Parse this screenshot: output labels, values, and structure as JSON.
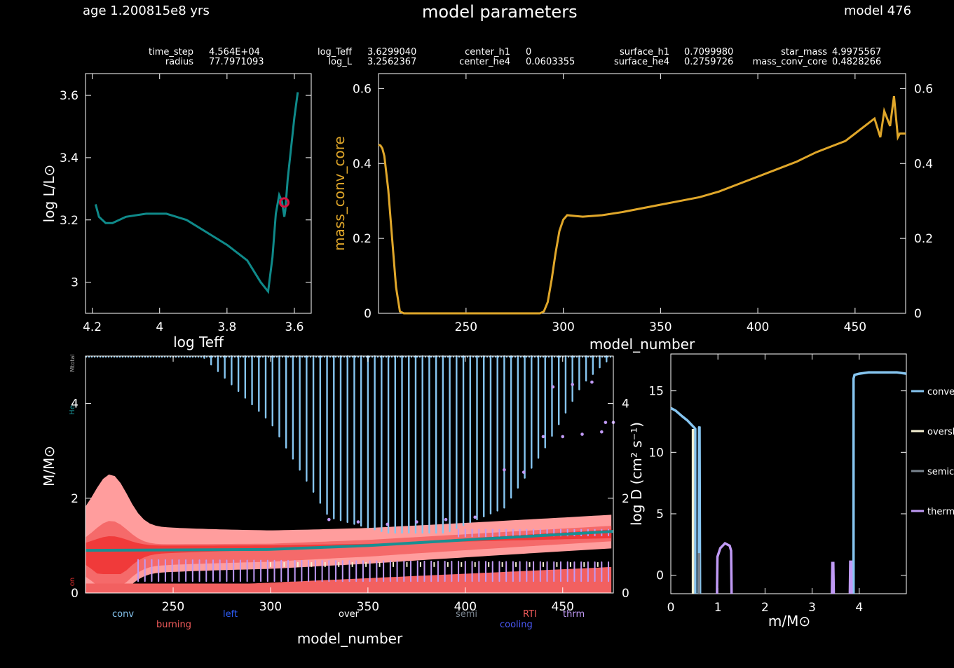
{
  "header": {
    "age_text": "age 1.200815e8 yrs",
    "title": "model parameters",
    "model_text": "model 476"
  },
  "stats": [
    {
      "label": "time_step",
      "value": "4.564E+04"
    },
    {
      "label": "radius",
      "value": "77.7971093"
    },
    {
      "label": "log_Teff",
      "value": "3.6299040"
    },
    {
      "label": "log_L",
      "value": "3.2562367"
    },
    {
      "label": "center_h1",
      "value": "0"
    },
    {
      "label": "center_he4",
      "value": "0.0603355"
    },
    {
      "label": "surface_h1",
      "value": "0.7099980"
    },
    {
      "label": "surface_he4",
      "value": "0.2759726"
    },
    {
      "label": "star_mass",
      "value": "4.9975567"
    },
    {
      "label": "mass_conv_core",
      "value": "0.4828266"
    }
  ],
  "colors": {
    "hr_track": "#0f8a8a",
    "hr_marker": "#d6123f",
    "mass_conv_core": "#e0a72a",
    "convective": "#86c5f0",
    "overshoot": "#f5f0d2",
    "semiconvective": "#7a8590",
    "thermohaline": "#c09af5",
    "burning_dark": "#f03a3a",
    "burning_light": "#ff9d9d",
    "he_core": "#1a8f92"
  },
  "chart_data": [
    {
      "type": "line",
      "name": "hr",
      "xlabel": "log Teff",
      "ylabel": "log L/L⊙",
      "xlim": [
        4.22,
        3.55
      ],
      "ylim": [
        2.9,
        3.67
      ],
      "xticks": [
        "4.2",
        "4",
        "3.8",
        "3.6"
      ],
      "yticks": [
        "3",
        "3.2",
        "3.4",
        "3.6"
      ],
      "x": [
        4.19,
        4.18,
        4.16,
        4.14,
        4.1,
        4.04,
        3.98,
        3.92,
        3.86,
        3.8,
        3.74,
        3.7,
        3.678,
        3.665,
        3.655,
        3.645,
        3.637,
        3.63,
        3.627,
        3.625,
        3.62,
        3.61,
        3.6,
        3.59
      ],
      "y": [
        3.25,
        3.21,
        3.19,
        3.19,
        3.21,
        3.22,
        3.22,
        3.2,
        3.16,
        3.12,
        3.07,
        3.0,
        2.97,
        3.08,
        3.22,
        3.28,
        3.26,
        3.21,
        3.23,
        3.26,
        3.33,
        3.43,
        3.53,
        3.61
      ],
      "current": {
        "x": 3.63,
        "y": 3.256
      }
    },
    {
      "type": "line",
      "name": "mass_conv_core_history",
      "xlabel": "model_number",
      "ylabel": "mass_conv_core",
      "xlim": [
        205,
        476
      ],
      "ylim": [
        0,
        0.64
      ],
      "xticks": [
        "250",
        "300",
        "350",
        "400",
        "450"
      ],
      "yticks": [
        "0",
        "0.2",
        "0.4",
        "0.6"
      ],
      "x": [
        205,
        206,
        207,
        208,
        210,
        212,
        214,
        216,
        218,
        288,
        290,
        292,
        294,
        296,
        298,
        300,
        302,
        306,
        310,
        320,
        330,
        340,
        350,
        360,
        370,
        380,
        390,
        400,
        410,
        420,
        430,
        435,
        440,
        445,
        450,
        455,
        460,
        463,
        465,
        468,
        470,
        472,
        473,
        476
      ],
      "y": [
        0.45,
        0.448,
        0.44,
        0.42,
        0.33,
        0.2,
        0.07,
        0.005,
        0,
        0,
        0.005,
        0.03,
        0.09,
        0.16,
        0.22,
        0.25,
        0.262,
        0.26,
        0.258,
        0.262,
        0.27,
        0.28,
        0.29,
        0.3,
        0.31,
        0.325,
        0.345,
        0.365,
        0.385,
        0.405,
        0.43,
        0.44,
        0.45,
        0.46,
        0.48,
        0.5,
        0.52,
        0.47,
        0.54,
        0.5,
        0.58,
        0.47,
        0.48,
        0.48
      ]
    },
    {
      "type": "area",
      "name": "kippenhahn",
      "xlabel": "model_number",
      "ylabel": "M/M⊙",
      "xlim": [
        205,
        476
      ],
      "ylim": [
        0,
        5
      ],
      "xticks": [
        "250",
        "300",
        "350",
        "400",
        "450"
      ],
      "yticks": [
        "0",
        "2",
        "4"
      ],
      "y2ticks": [
        "0",
        "2",
        "4"
      ],
      "total_mass": 4.9976,
      "right_edge_labels": [
        "Mtotal",
        "He",
        "on"
      ],
      "legend": [
        "conv",
        "burning",
        "left",
        "over",
        "semi",
        "RTI",
        "cooling",
        "thrm"
      ],
      "he_core_mass": {
        "x": [
          205,
          300,
          350,
          400,
          476
        ],
        "y": [
          0.9,
          0.92,
          1.0,
          1.12,
          1.3
        ]
      },
      "envelope_convection_bottom": {
        "x": [
          265,
          300,
          330,
          360,
          390,
          420,
          440,
          460,
          470,
          476
        ],
        "y": [
          5.0,
          3.6,
          1.6,
          1.27,
          1.27,
          1.8,
          3.0,
          4.4,
          4.8,
          5.0
        ]
      }
    },
    {
      "type": "line",
      "name": "mixing_profile",
      "xlabel": "m/M⊙",
      "ylabel": "log D (cm² s⁻¹)",
      "xlim": [
        0,
        5
      ],
      "ylim": [
        -1.5,
        18
      ],
      "xticks": [
        "0",
        "1",
        "2",
        "3",
        "4"
      ],
      "yticks": [
        "0",
        "5",
        "10",
        "15"
      ],
      "legend": [
        "convective",
        "overshoot",
        "semiconvective",
        "thermohaline"
      ],
      "series": [
        {
          "name": "convective",
          "segments": [
            {
              "x": [
                0.0,
                0.1,
                0.25,
                0.35,
                0.45,
                0.5,
                0.52,
                0.52
              ],
              "y": [
                13.6,
                13.4,
                12.9,
                12.6,
                12.2,
                12.0,
                11.9,
                -1.5
              ]
            },
            {
              "x": [
                0.59,
                0.6,
                0.61,
                0.62
              ],
              "y": [
                -1.5,
                12.0,
                12.1,
                -1.5
              ]
            },
            {
              "x": [
                3.88,
                3.88,
                3.9,
                4.0,
                4.2,
                4.5,
                4.8,
                5.0
              ],
              "y": [
                -1.5,
                16.0,
                16.3,
                16.4,
                16.5,
                16.5,
                16.5,
                16.4
              ]
            }
          ]
        },
        {
          "name": "overshoot",
          "segments": [
            {
              "x": [
                0.47,
                0.47
              ],
              "y": [
                -1.5,
                11.9
              ]
            }
          ]
        },
        {
          "name": "semiconvective",
          "segments": [
            {
              "x": [
                0.6,
                0.6
              ],
              "y": [
                -1.5,
                1.8
              ]
            }
          ]
        },
        {
          "name": "thermohaline",
          "segments": [
            {
              "x": [
                0.98,
                0.99,
                1.05,
                1.15,
                1.25,
                1.28,
                1.29
              ],
              "y": [
                -1.5,
                1.5,
                2.2,
                2.6,
                2.4,
                2.0,
                -1.5
              ]
            },
            {
              "x": [
                3.42,
                3.43,
                3.45,
                3.46
              ],
              "y": [
                -1.5,
                1.0,
                1.0,
                -1.5
              ]
            },
            {
              "x": [
                3.8,
                3.81,
                3.83,
                3.84
              ],
              "y": [
                -1.5,
                1.1,
                1.1,
                -1.5
              ]
            }
          ]
        }
      ]
    }
  ]
}
